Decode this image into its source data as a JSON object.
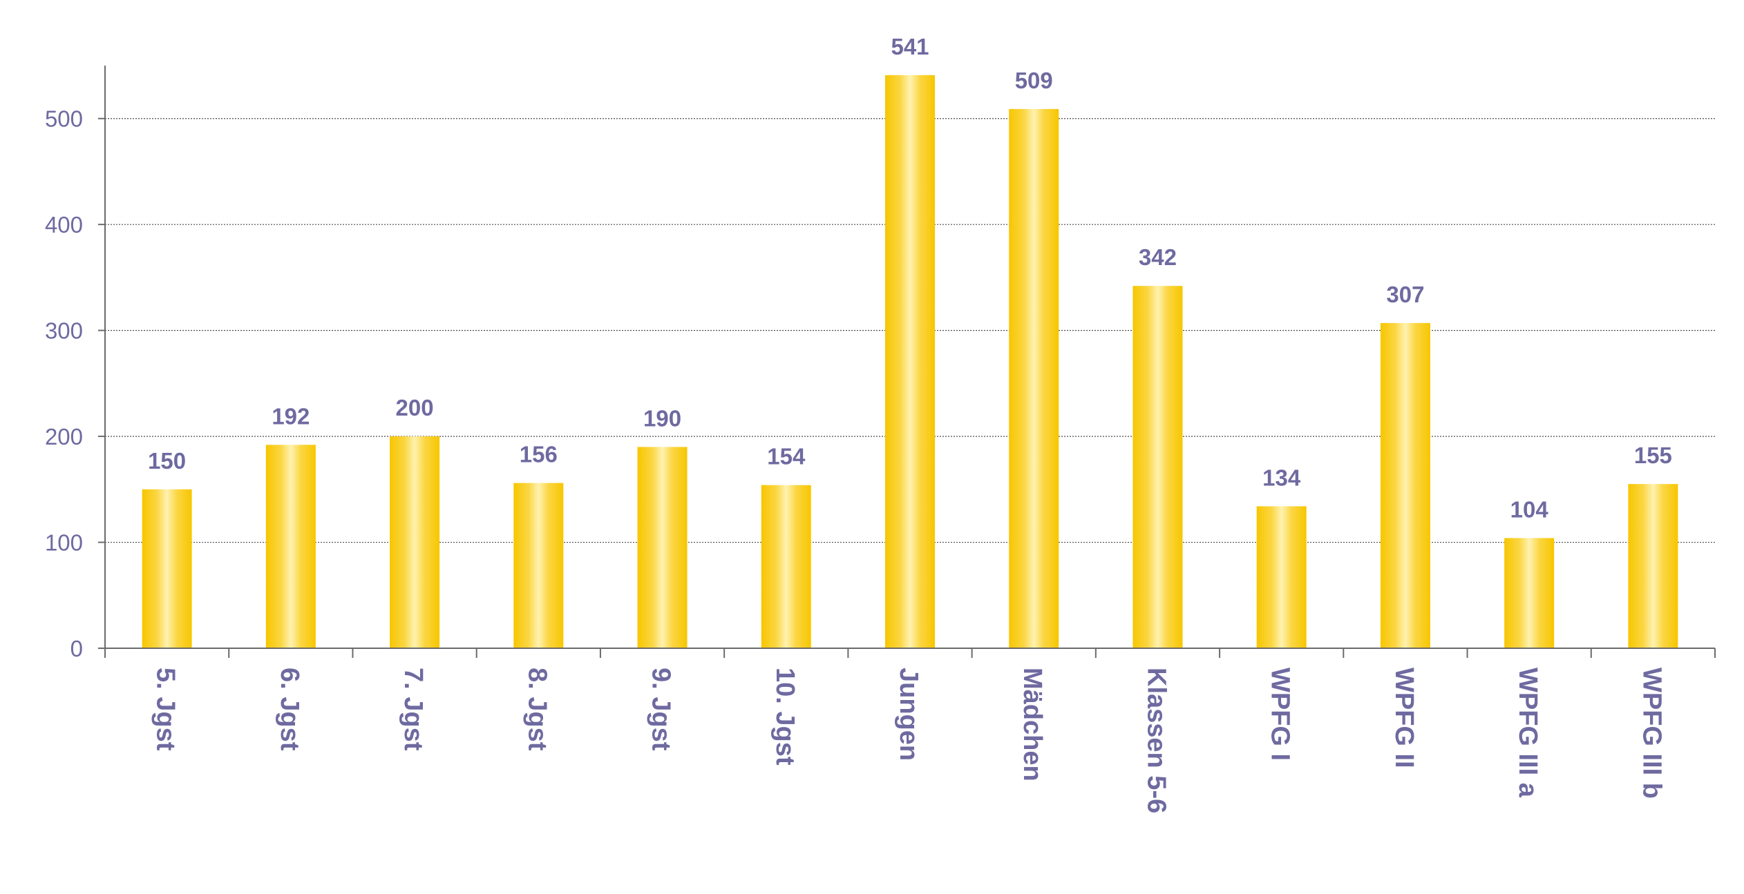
{
  "chart_data": {
    "type": "bar",
    "title": "",
    "xlabel": "",
    "ylabel": "",
    "ylim": [
      0,
      550
    ],
    "yticks": [
      0,
      100,
      200,
      300,
      400,
      500
    ],
    "grid": true,
    "legend": "none",
    "categories": [
      "5. Jgst",
      "6. Jgst",
      "7. Jgst",
      "8. Jgst",
      "9. Jgst",
      "10. Jgst",
      "Jungen",
      "Mädchen",
      "Klassen 5-6",
      "WPFG I",
      "WPFG II",
      "WPFG III a",
      "WPFG III b"
    ],
    "values": [
      150,
      192,
      200,
      156,
      190,
      154,
      541,
      509,
      342,
      134,
      307,
      104,
      155
    ],
    "data_labels": [
      "150",
      "192",
      "200",
      "156",
      "190",
      "154",
      "541",
      "509",
      "342",
      "134",
      "307",
      "104",
      "155"
    ],
    "bar_color": "#f7c600",
    "text_color": "#6e6aa0"
  }
}
